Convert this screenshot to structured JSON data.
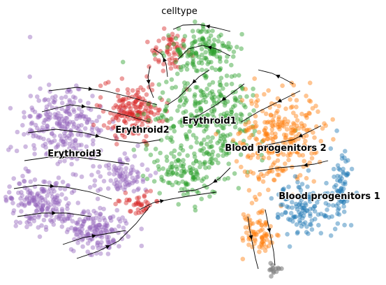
{
  "chart_data": {
    "type": "scatter",
    "title": "celltype",
    "xlabel": "",
    "ylabel": "",
    "axes_visible": false,
    "grid": false,
    "legend": "on data",
    "overlay": "velocity streamlines",
    "series": [
      {
        "name": "Erythroid3",
        "color": "#9467bd"
      },
      {
        "name": "Erythroid2",
        "color": "#d62728"
      },
      {
        "name": "Erythroid1",
        "color": "#2ca02c"
      },
      {
        "name": "Blood progenitors 2",
        "color": "#ff7f0e"
      },
      {
        "name": "Blood progenitors 1",
        "color": "#1f77b4"
      }
    ],
    "extra_color": "#7f7f7f"
  }
}
